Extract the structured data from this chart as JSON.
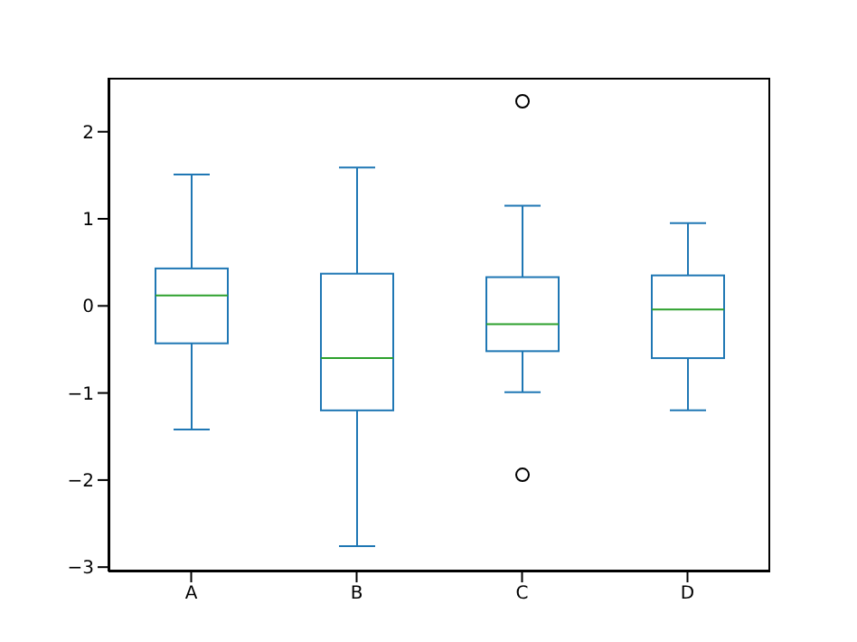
{
  "chart_data": {
    "type": "box",
    "categories": [
      "A",
      "B",
      "C",
      "D"
    ],
    "color": "#1f77b4",
    "boxes": [
      {
        "low": -1.42,
        "q1": -0.43,
        "median": 0.12,
        "q3": 0.43,
        "high": 1.51
      },
      {
        "low": -2.76,
        "q1": -1.2,
        "median": -0.6,
        "q3": 0.37,
        "high": 1.59
      },
      {
        "low": -0.99,
        "q1": -0.52,
        "median": -0.21,
        "q3": 0.33,
        "high": 1.15,
        "outliers": [
          2.35,
          -1.94
        ]
      },
      {
        "low": -1.2,
        "q1": -0.6,
        "median": -0.04,
        "q3": 0.35,
        "high": 0.95
      }
    ],
    "ylim": [
      -3.05,
      2.62
    ],
    "yticks": [
      {
        "value": -3,
        "label": "−3"
      },
      {
        "value": -2,
        "label": "−2"
      },
      {
        "value": -1,
        "label": "−1"
      },
      0,
      1,
      2
    ],
    "grid": false
  }
}
